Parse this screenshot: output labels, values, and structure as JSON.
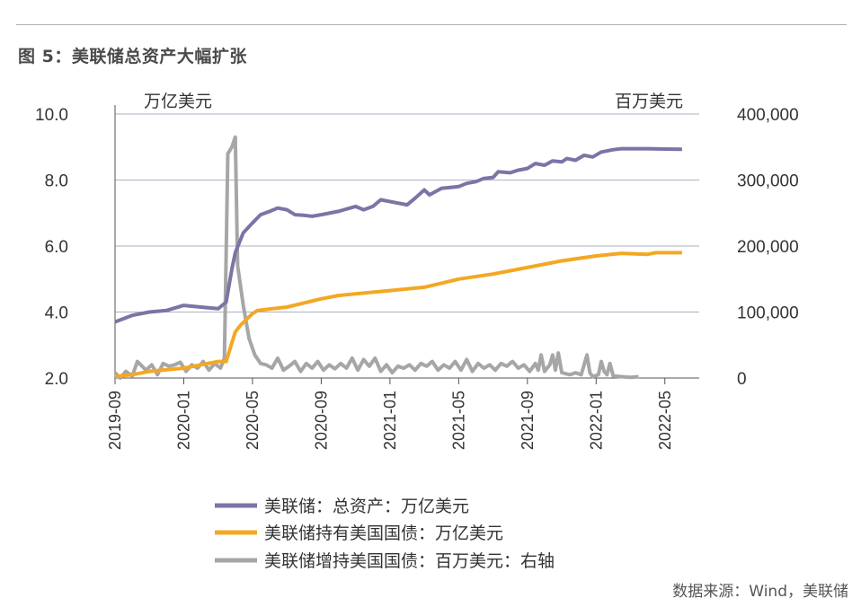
{
  "figure": {
    "title": "图 5：美联储总资产大幅扩张",
    "source": "数据来源：Wind，美联储"
  },
  "chart_data": {
    "type": "line",
    "left_axis_unit": "万亿美元",
    "right_axis_unit": "百万美元",
    "left_ticks": [
      "2.0",
      "4.0",
      "6.0",
      "8.0",
      "10.0"
    ],
    "right_ticks": [
      "0",
      "100,000",
      "200,000",
      "300,000",
      "400,000"
    ],
    "ylim_left": [
      2,
      10
    ],
    "ylim_right": [
      0,
      400000
    ],
    "x_tick_labels": [
      "2019-09",
      "2020-01",
      "2020-05",
      "2020-09",
      "2021-01",
      "2021-05",
      "2021-09",
      "2022-01",
      "2022-05"
    ],
    "x_range_months": [
      "2019-09",
      "2022-07"
    ],
    "grid": "horizontal",
    "legend_position": "bottom",
    "colors": {
      "total_assets": "#7b74a6",
      "treasury_holdings": "#f3a823",
      "treasury_increase": "#a6a6a6",
      "grid": "#a9b3c3",
      "axis": "#555555"
    },
    "series": [
      {
        "name": "美联储：总资产：万亿美元",
        "axis": "left",
        "points": [
          [
            "2019-09-01",
            3.7
          ],
          [
            "2019-10-01",
            3.9
          ],
          [
            "2019-11-01",
            4.0
          ],
          [
            "2019-12-01",
            4.05
          ],
          [
            "2020-01-01",
            4.2
          ],
          [
            "2020-02-01",
            4.15
          ],
          [
            "2020-03-01",
            4.1
          ],
          [
            "2020-03-15",
            4.3
          ],
          [
            "2020-03-25",
            5.3
          ],
          [
            "2020-04-01",
            5.8
          ],
          [
            "2020-04-15",
            6.4
          ],
          [
            "2020-05-01",
            6.7
          ],
          [
            "2020-05-15",
            6.95
          ],
          [
            "2020-06-01",
            7.05
          ],
          [
            "2020-06-15",
            7.15
          ],
          [
            "2020-07-01",
            7.1
          ],
          [
            "2020-07-15",
            6.95
          ],
          [
            "2020-08-01",
            6.93
          ],
          [
            "2020-08-15",
            6.9
          ],
          [
            "2020-09-01",
            6.95
          ],
          [
            "2020-10-01",
            7.05
          ],
          [
            "2020-11-01",
            7.2
          ],
          [
            "2020-11-15",
            7.1
          ],
          [
            "2020-12-01",
            7.2
          ],
          [
            "2020-12-15",
            7.4
          ],
          [
            "2021-01-15",
            7.3
          ],
          [
            "2021-02-01",
            7.25
          ],
          [
            "2021-02-15",
            7.45
          ],
          [
            "2021-03-01",
            7.7
          ],
          [
            "2021-03-10",
            7.55
          ],
          [
            "2021-04-01",
            7.75
          ],
          [
            "2021-05-01",
            7.8
          ],
          [
            "2021-05-15",
            7.9
          ],
          [
            "2021-06-01",
            7.95
          ],
          [
            "2021-06-15",
            8.05
          ],
          [
            "2021-07-01",
            8.08
          ],
          [
            "2021-07-10",
            8.25
          ],
          [
            "2021-08-01",
            8.22
          ],
          [
            "2021-08-15",
            8.3
          ],
          [
            "2021-09-01",
            8.35
          ],
          [
            "2021-09-15",
            8.5
          ],
          [
            "2021-10-01",
            8.45
          ],
          [
            "2021-10-15",
            8.58
          ],
          [
            "2021-11-01",
            8.55
          ],
          [
            "2021-11-10",
            8.65
          ],
          [
            "2021-11-25",
            8.6
          ],
          [
            "2021-12-10",
            8.75
          ],
          [
            "2021-12-25",
            8.7
          ],
          [
            "2022-01-10",
            8.85
          ],
          [
            "2022-02-01",
            8.92
          ],
          [
            "2022-02-15",
            8.95
          ],
          [
            "2022-03-01",
            8.95
          ],
          [
            "2022-04-01",
            8.95
          ],
          [
            "2022-05-01",
            8.94
          ],
          [
            "2022-06-01",
            8.93
          ]
        ]
      },
      {
        "name": "美联储持有美国国债：万亿美元",
        "axis": "left",
        "points": [
          [
            "2019-09-01",
            2.05
          ],
          [
            "2019-10-01",
            2.1
          ],
          [
            "2019-11-01",
            2.2
          ],
          [
            "2020-01-01",
            2.3
          ],
          [
            "2020-02-01",
            2.4
          ],
          [
            "2020-03-01",
            2.5
          ],
          [
            "2020-03-15",
            2.5
          ],
          [
            "2020-04-01",
            3.4
          ],
          [
            "2020-04-10",
            3.6
          ],
          [
            "2020-05-01",
            3.95
          ],
          [
            "2020-05-10",
            4.05
          ],
          [
            "2020-07-01",
            4.15
          ],
          [
            "2020-09-01",
            4.4
          ],
          [
            "2020-10-01",
            4.5
          ],
          [
            "2021-01-01",
            4.65
          ],
          [
            "2021-03-01",
            4.75
          ],
          [
            "2021-05-01",
            5.0
          ],
          [
            "2021-07-01",
            5.15
          ],
          [
            "2021-09-01",
            5.35
          ],
          [
            "2021-11-01",
            5.55
          ],
          [
            "2022-01-01",
            5.7
          ],
          [
            "2022-02-15",
            5.78
          ],
          [
            "2022-04-01",
            5.75
          ],
          [
            "2022-04-15",
            5.8
          ],
          [
            "2022-06-01",
            5.8
          ]
        ]
      },
      {
        "name": "美联储增持美国国债：百万美元：右轴",
        "axis": "right",
        "points": [
          [
            "2019-09-01",
            8000
          ],
          [
            "2019-09-10",
            0
          ],
          [
            "2019-09-20",
            10000
          ],
          [
            "2019-10-01",
            3000
          ],
          [
            "2019-10-10",
            25000
          ],
          [
            "2019-10-25",
            12000
          ],
          [
            "2019-11-05",
            20000
          ],
          [
            "2019-11-15",
            5000
          ],
          [
            "2019-11-25",
            22000
          ],
          [
            "2019-12-05",
            18000
          ],
          [
            "2019-12-15",
            20000
          ],
          [
            "2019-12-25",
            24000
          ],
          [
            "2020-01-05",
            10000
          ],
          [
            "2020-01-15",
            20000
          ],
          [
            "2020-01-25",
            15000
          ],
          [
            "2020-02-05",
            25000
          ],
          [
            "2020-02-15",
            12000
          ],
          [
            "2020-02-25",
            22000
          ],
          [
            "2020-03-05",
            15000
          ],
          [
            "2020-03-12",
            30000
          ],
          [
            "2020-03-18",
            340000
          ],
          [
            "2020-03-25",
            350000
          ],
          [
            "2020-03-31",
            365000
          ],
          [
            "2020-04-05",
            170000
          ],
          [
            "2020-04-15",
            110000
          ],
          [
            "2020-04-25",
            60000
          ],
          [
            "2020-05-05",
            35000
          ],
          [
            "2020-05-15",
            22000
          ],
          [
            "2020-05-25",
            20000
          ],
          [
            "2020-06-05",
            15000
          ],
          [
            "2020-06-15",
            30000
          ],
          [
            "2020-06-25",
            12000
          ],
          [
            "2020-07-05",
            18000
          ],
          [
            "2020-07-15",
            25000
          ],
          [
            "2020-07-25",
            10000
          ],
          [
            "2020-08-05",
            22000
          ],
          [
            "2020-08-15",
            15000
          ],
          [
            "2020-08-25",
            25000
          ],
          [
            "2020-09-05",
            12000
          ],
          [
            "2020-09-15",
            20000
          ],
          [
            "2020-09-25",
            14000
          ],
          [
            "2020-10-05",
            22000
          ],
          [
            "2020-10-15",
            15000
          ],
          [
            "2020-10-25",
            30000
          ],
          [
            "2020-11-05",
            12000
          ],
          [
            "2020-11-15",
            28000
          ],
          [
            "2020-11-25",
            18000
          ],
          [
            "2020-12-05",
            30000
          ],
          [
            "2020-12-15",
            10000
          ],
          [
            "2020-12-25",
            20000
          ],
          [
            "2021-01-05",
            8000
          ],
          [
            "2021-01-15",
            18000
          ],
          [
            "2021-01-25",
            15000
          ],
          [
            "2021-02-05",
            20000
          ],
          [
            "2021-02-15",
            12000
          ],
          [
            "2021-02-25",
            22000
          ],
          [
            "2021-03-05",
            18000
          ],
          [
            "2021-03-15",
            25000
          ],
          [
            "2021-03-25",
            12000
          ],
          [
            "2021-04-05",
            20000
          ],
          [
            "2021-04-15",
            15000
          ],
          [
            "2021-04-25",
            25000
          ],
          [
            "2021-05-05",
            12000
          ],
          [
            "2021-05-15",
            28000
          ],
          [
            "2021-05-25",
            10000
          ],
          [
            "2021-06-05",
            22000
          ],
          [
            "2021-06-15",
            15000
          ],
          [
            "2021-06-25",
            20000
          ],
          [
            "2021-07-05",
            12000
          ],
          [
            "2021-07-15",
            22000
          ],
          [
            "2021-07-25",
            18000
          ],
          [
            "2021-08-05",
            25000
          ],
          [
            "2021-08-15",
            15000
          ],
          [
            "2021-08-25",
            20000
          ],
          [
            "2021-09-05",
            10000
          ],
          [
            "2021-09-15",
            22000
          ],
          [
            "2021-09-20",
            12000
          ],
          [
            "2021-09-25",
            35000
          ],
          [
            "2021-10-01",
            10000
          ],
          [
            "2021-10-10",
            20000
          ],
          [
            "2021-10-15",
            35000
          ],
          [
            "2021-10-20",
            12000
          ],
          [
            "2021-10-25",
            38000
          ],
          [
            "2021-11-01",
            8000
          ],
          [
            "2021-11-15",
            5000
          ],
          [
            "2021-11-25",
            8000
          ],
          [
            "2021-12-05",
            5000
          ],
          [
            "2021-12-15",
            35000
          ],
          [
            "2021-12-20",
            8000
          ],
          [
            "2021-12-25",
            2000
          ],
          [
            "2022-01-05",
            5000
          ],
          [
            "2022-01-10",
            25000
          ],
          [
            "2022-01-15",
            10000
          ],
          [
            "2022-01-20",
            5000
          ],
          [
            "2022-01-25",
            22000
          ],
          [
            "2022-02-01",
            3000
          ],
          [
            "2022-02-15",
            2000
          ],
          [
            "2022-03-01",
            1000
          ],
          [
            "2022-03-15",
            2000
          ]
        ]
      }
    ]
  }
}
